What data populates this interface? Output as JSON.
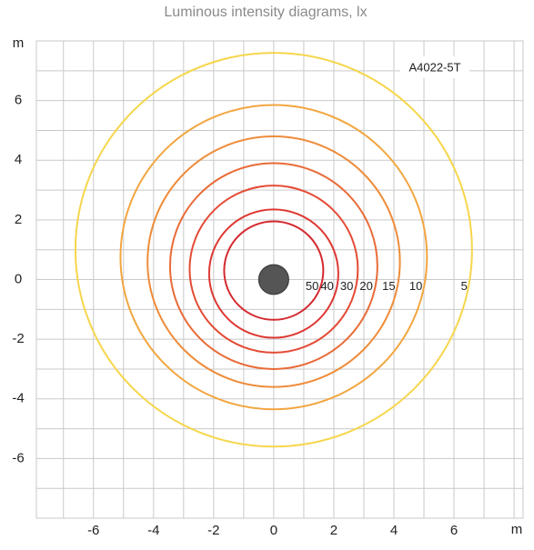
{
  "chart_data": {
    "type": "isolux",
    "title": "Luminous intensity diagrams, lx",
    "x_label": "m",
    "y_label": "m",
    "annotation": "A4022-5T",
    "xlim": [
      -7.9,
      8.3
    ],
    "ylim": [
      -8,
      8
    ],
    "xticks": [
      -6,
      -4,
      -2,
      0,
      2,
      4,
      6
    ],
    "yticks": [
      -6,
      -4,
      -2,
      0,
      2,
      4,
      6
    ],
    "xgrid": [
      -7,
      -6,
      -5,
      -4,
      -3,
      -2,
      -1,
      0,
      1,
      2,
      3,
      4,
      5,
      6,
      7,
      8
    ],
    "ygrid": [
      -7,
      -6,
      -5,
      -4,
      -3,
      -2,
      -1,
      0,
      1,
      2,
      3,
      4,
      5,
      6,
      7
    ],
    "grid": true,
    "source": {
      "x": 0,
      "y": 0,
      "r": 0.5,
      "color": "#555555"
    },
    "contours": [
      {
        "level": 5,
        "color": "#f6d64c",
        "cx": 0,
        "cy": 1.0,
        "r": 6.6
      },
      {
        "level": 10,
        "color": "#f2a640",
        "cx": 0,
        "cy": 0.75,
        "r": 5.1
      },
      {
        "level": 15,
        "color": "#ee8c3a",
        "cx": 0,
        "cy": 0.6,
        "r": 4.2
      },
      {
        "level": 20,
        "color": "#e96b38",
        "cx": 0,
        "cy": 0.45,
        "r": 3.45
      },
      {
        "level": 30,
        "color": "#e44c36",
        "cx": 0,
        "cy": 0.35,
        "r": 2.8
      },
      {
        "level": 40,
        "color": "#de3833",
        "cx": 0,
        "cy": 0.2,
        "r": 2.15
      },
      {
        "level": 50,
        "color": "#d42a30",
        "cx": 0,
        "cy": 0.3,
        "r": 1.65
      }
    ]
  }
}
